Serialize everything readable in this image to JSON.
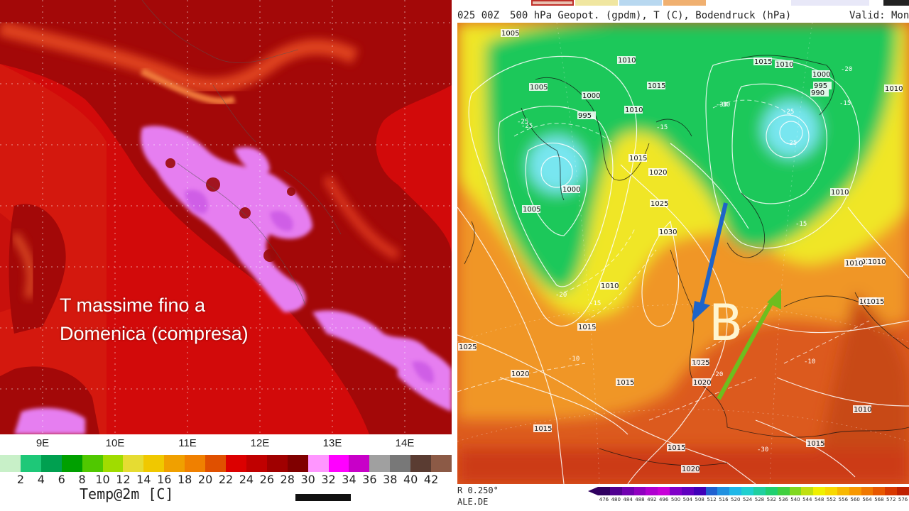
{
  "left_map": {
    "caption_line1": "T massime fino a",
    "caption_line2": "Domenica (compresa)",
    "longitudes": [
      "9E",
      "10E",
      "11E",
      "12E",
      "13E",
      "14E"
    ],
    "colorbar_ticks": [
      "2",
      "4",
      "6",
      "8",
      "10",
      "12",
      "14",
      "16",
      "18",
      "20",
      "22",
      "24",
      "26",
      "28",
      "30",
      "32",
      "34",
      "36",
      "38",
      "40",
      "42"
    ],
    "colorbar_colors": [
      "#c8f0c8",
      "#1ec878",
      "#00a050",
      "#00a000",
      "#50c800",
      "#a0dc00",
      "#e6dc32",
      "#f0c800",
      "#f0a000",
      "#f08000",
      "#e05000",
      "#dc0000",
      "#c00000",
      "#a00000",
      "#800000",
      "#ff96ff",
      "#ff00ff",
      "#c800c8",
      "#a0a0a0",
      "#787878",
      "#5a3c32",
      "#8c5a46"
    ],
    "variable_label": "Temp@2m [C]",
    "colors": {
      "sea": "#d20a0a",
      "land": "#a50a0a",
      "hot": "#e63c1e",
      "extreme": "#e682f0"
    }
  },
  "right_map": {
    "header_prefix": "025 00Z",
    "header_title": "500 hPa Geopot. (gpdm), T (C), Bodendruck (hPa)",
    "header_valid": "Valid: Mon",
    "resolution_text": "R 0.250°",
    "source_text": "ALE.DE",
    "low_label": "B",
    "arrow_colors": {
      "north": "#1e64c8",
      "southwest": "#6ebe1e"
    },
    "pressure_labels": [
      "1005",
      "1010",
      "1015",
      "1000",
      "995",
      "1010",
      "1015",
      "1010",
      "1005",
      "1000",
      "995",
      "990",
      "1010",
      "1005",
      "1000",
      "1015",
      "1020",
      "1025",
      "1030",
      "1010",
      "1015",
      "1010",
      "1025",
      "1020",
      "1015",
      "1025",
      "1020",
      "1015",
      "1015",
      "1015",
      "1015",
      "1020",
      "1015",
      "1010",
      "1010",
      "1010",
      "1015"
    ],
    "temp_labels": [
      "-25",
      "-30",
      "-20",
      "-25",
      "-30",
      "-25",
      "-15",
      "-15",
      "-25",
      "-20",
      "-15",
      "-10",
      "-15",
      "-20",
      "-15",
      "-10",
      "-30"
    ],
    "colorbar_ticks": [
      "476",
      "480",
      "484",
      "488",
      "492",
      "496",
      "500",
      "504",
      "508",
      "512",
      "516",
      "520",
      "524",
      "528",
      "532",
      "536",
      "540",
      "544",
      "548",
      "552",
      "556",
      "560",
      "564",
      "568",
      "572",
      "576"
    ],
    "colorbar_colors": [
      "#300060",
      "#500090",
      "#7000b0",
      "#9000c0",
      "#b000d0",
      "#c800d8",
      "#8000c8",
      "#6000c0",
      "#4000b8",
      "#2060d0",
      "#2090e0",
      "#20b8e8",
      "#20d0d0",
      "#20d0a0",
      "#20d070",
      "#40d040",
      "#80d820",
      "#c0e010",
      "#f0f000",
      "#f8d800",
      "#f8b800",
      "#f89800",
      "#f07800",
      "#e85800",
      "#d83800",
      "#c02000"
    ],
    "colors": {
      "deep_low": "#78e6f0",
      "low": "#1ec85a",
      "mid": "#f0e628",
      "warm": "#f09628",
      "hot": "#dc5a1e"
    }
  }
}
